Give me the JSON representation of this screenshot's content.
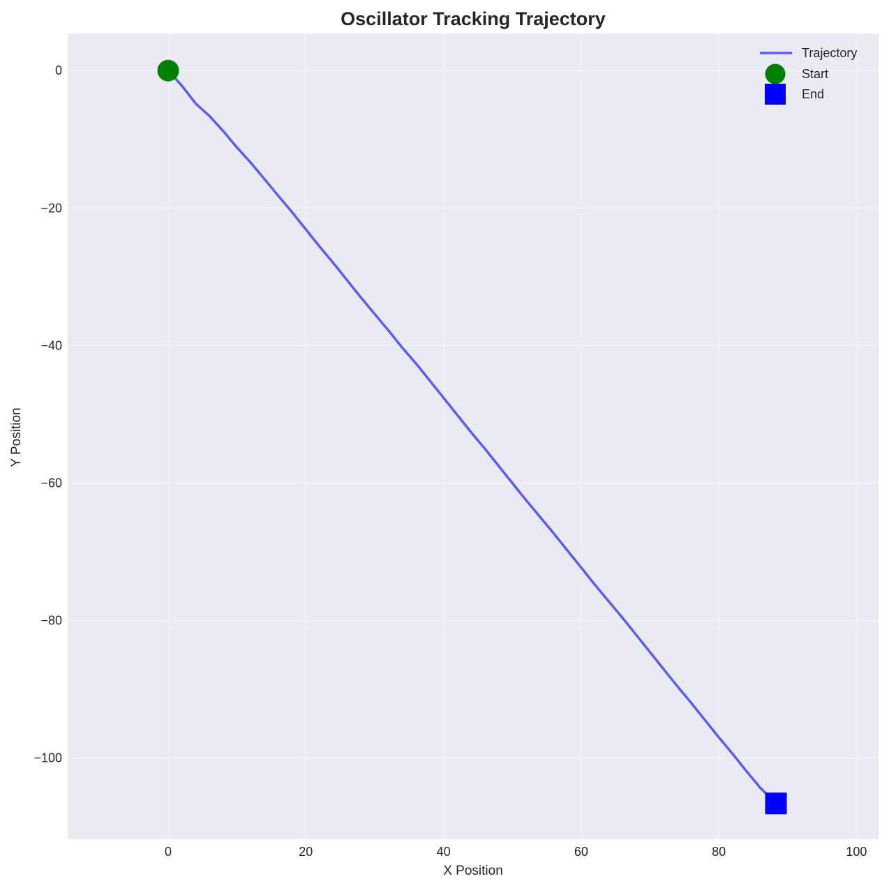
{
  "chart_data": {
    "type": "line",
    "title": "Oscillator Tracking Trajectory",
    "xlabel": "X Position",
    "ylabel": "Y Position",
    "xlim": [
      -14.6,
      103.2
    ],
    "ylim": [
      -111.8,
      5.4
    ],
    "xticks": [
      0,
      20,
      40,
      60,
      80,
      100
    ],
    "yticks": [
      0,
      -20,
      -40,
      -60,
      -80,
      -100
    ],
    "xtick_labels": [
      "0",
      "20",
      "40",
      "60",
      "80",
      "100"
    ],
    "ytick_labels": [
      "0",
      "−20",
      "−40",
      "−60",
      "−80",
      "−100"
    ],
    "grid": true,
    "legend_position": "top-right",
    "series": [
      {
        "name": "Trajectory",
        "kind": "line",
        "color": "#5c5cf2",
        "x": [
          0,
          2,
          4,
          6,
          8,
          10,
          12,
          14,
          16,
          18,
          20,
          22,
          24,
          26,
          28,
          30,
          32,
          34,
          36,
          38,
          40,
          42,
          44,
          46,
          48,
          50,
          52,
          54,
          56,
          58,
          60,
          62,
          64,
          66,
          68,
          70,
          72,
          74,
          76,
          78,
          80,
          82,
          84,
          86,
          88.3
        ],
        "y": [
          0,
          -2.2,
          -4.8,
          -6.6,
          -8.8,
          -11.2,
          -13.4,
          -15.8,
          -18.2,
          -20.6,
          -23.1,
          -25.6,
          -28.0,
          -30.5,
          -33.0,
          -35.4,
          -37.8,
          -40.3,
          -42.6,
          -45.1,
          -47.6,
          -50.1,
          -52.6,
          -55.0,
          -57.5,
          -60.0,
          -62.5,
          -64.9,
          -67.3,
          -69.8,
          -72.3,
          -74.8,
          -77.2,
          -79.6,
          -82.1,
          -84.6,
          -87.1,
          -89.6,
          -92.0,
          -94.5,
          -97.0,
          -99.4,
          -101.9,
          -104.3,
          -106.6
        ]
      },
      {
        "name": "Start",
        "kind": "marker",
        "shape": "circle",
        "color": "#008000",
        "x": [
          0
        ],
        "y": [
          0
        ]
      },
      {
        "name": "End",
        "kind": "marker",
        "shape": "square",
        "color": "#0000ff",
        "x": [
          88.3
        ],
        "y": [
          -106.6
        ]
      }
    ],
    "colors": {
      "background": "#eaeaf2",
      "grid": "#f5f5f9"
    }
  }
}
